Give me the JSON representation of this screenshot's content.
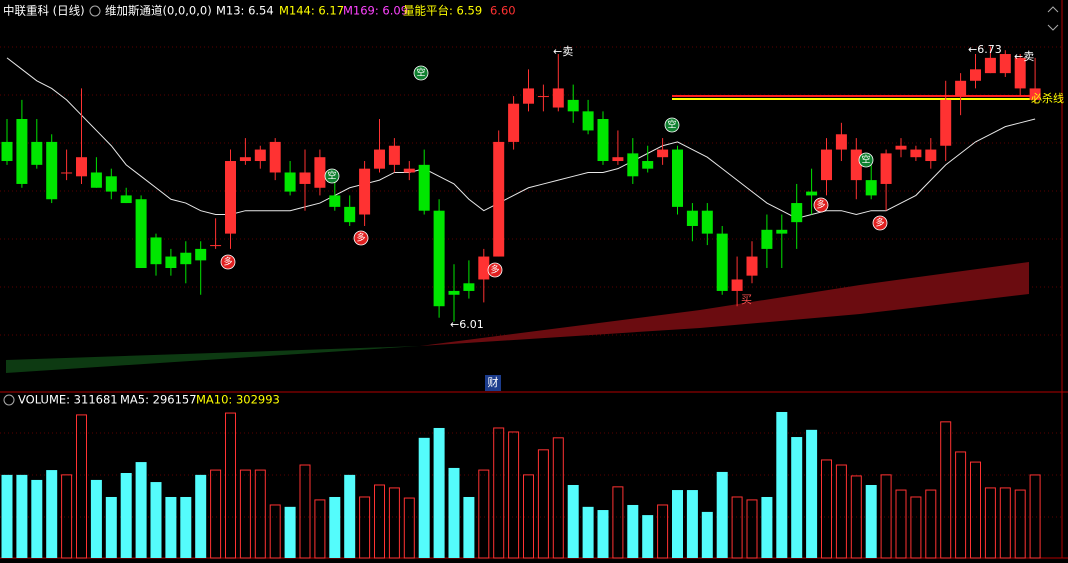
{
  "chart_data": [
    {
      "type": "candlestick",
      "title": "中联重科 (日线)",
      "indicators": [
        "维加斯通道(0,0,0,0)",
        "M13: 6.54",
        "M144: 6.17",
        "M169: 6.09",
        "量能平台: 6.59",
        "6.60"
      ],
      "open": [
        6.48,
        6.54,
        6.48,
        6.48,
        6.4,
        6.39,
        6.4,
        6.39,
        6.34,
        6.33,
        6.23,
        6.18,
        6.19,
        6.2,
        6.21,
        6.24,
        6.43,
        6.43,
        6.4,
        6.4,
        6.37,
        6.36,
        6.34,
        6.31,
        6.29,
        6.41,
        6.42,
        6.4,
        6.42,
        6.3,
        6.09,
        6.11,
        6.12,
        6.18,
        6.48,
        6.58,
        6.6,
        6.57,
        6.59,
        6.56,
        6.54,
        6.43,
        6.45,
        6.43,
        6.44,
        6.46,
        6.3,
        6.3,
        6.24,
        6.09,
        6.13,
        6.25,
        6.25,
        6.32,
        6.35,
        6.38,
        6.46,
        6.38,
        6.38,
        6.37,
        6.46,
        6.44,
        6.43,
        6.47,
        6.6,
        6.64,
        6.66,
        6.66,
        6.62,
        6.59
      ],
      "close": [
        6.43,
        6.37,
        6.42,
        6.33,
        6.4,
        6.44,
        6.36,
        6.35,
        6.32,
        6.15,
        6.16,
        6.15,
        6.16,
        6.17,
        6.21,
        6.43,
        6.44,
        6.46,
        6.48,
        6.35,
        6.4,
        6.44,
        6.31,
        6.27,
        6.41,
        6.46,
        6.47,
        6.41,
        6.3,
        6.05,
        6.08,
        6.09,
        6.18,
        6.48,
        6.58,
        6.62,
        6.6,
        6.62,
        6.56,
        6.51,
        6.43,
        6.44,
        6.39,
        6.41,
        6.46,
        6.31,
        6.26,
        6.24,
        6.09,
        6.12,
        6.18,
        6.2,
        6.24,
        6.27,
        6.34,
        6.46,
        6.5,
        6.46,
        6.34,
        6.45,
        6.47,
        6.46,
        6.46,
        6.59,
        6.64,
        6.67,
        6.7,
        6.71,
        6.7,
        6.62
      ],
      "high": [
        6.54,
        6.59,
        6.54,
        6.5,
        6.46,
        6.62,
        6.44,
        6.41,
        6.36,
        6.34,
        6.24,
        6.2,
        6.22,
        6.22,
        6.28,
        6.46,
        6.49,
        6.47,
        6.49,
        6.43,
        6.46,
        6.46,
        6.4,
        6.34,
        6.43,
        6.54,
        6.49,
        6.43,
        6.46,
        6.33,
        6.16,
        6.17,
        6.2,
        6.51,
        6.6,
        6.67,
        6.63,
        6.71,
        6.63,
        6.59,
        6.56,
        6.51,
        6.49,
        6.47,
        6.49,
        6.47,
        6.32,
        6.32,
        6.26,
        6.18,
        6.22,
        6.29,
        6.29,
        6.37,
        6.41,
        6.49,
        6.53,
        6.49,
        6.42,
        6.46,
        6.49,
        6.47,
        6.49,
        6.64,
        6.66,
        6.71,
        6.73,
        6.72,
        6.71,
        6.7
      ],
      "low": [
        6.42,
        6.36,
        6.41,
        6.32,
        6.38,
        6.37,
        6.36,
        6.33,
        6.32,
        6.15,
        6.13,
        6.13,
        6.11,
        6.08,
        6.2,
        6.2,
        6.42,
        6.41,
        6.38,
        6.34,
        6.3,
        6.34,
        6.3,
        6.26,
        6.26,
        6.4,
        6.4,
        6.38,
        6.29,
        6.02,
        6.01,
        6.07,
        6.06,
        6.18,
        6.46,
        6.56,
        6.56,
        6.56,
        6.53,
        6.5,
        6.42,
        6.42,
        6.37,
        6.4,
        6.42,
        6.29,
        6.22,
        6.21,
        6.08,
        6.05,
        6.11,
        6.15,
        6.15,
        6.2,
        6.29,
        6.34,
        6.43,
        6.33,
        6.33,
        6.3,
        6.44,
        6.43,
        6.41,
        6.43,
        6.55,
        6.62,
        6.66,
        6.65,
        6.6,
        6.58
      ],
      "ma_values": [
        6.7,
        6.67,
        6.64,
        6.62,
        6.59,
        6.55,
        6.51,
        6.47,
        6.42,
        6.39,
        6.36,
        6.33,
        6.32,
        6.3,
        6.29,
        6.29,
        6.3,
        6.3,
        6.3,
        6.3,
        6.31,
        6.32,
        6.34,
        6.36,
        6.37,
        6.38,
        6.4,
        6.4,
        6.41,
        6.39,
        6.37,
        6.33,
        6.3,
        6.32,
        6.34,
        6.36,
        6.37,
        6.38,
        6.39,
        6.4,
        6.4,
        6.41,
        6.43,
        6.45,
        6.47,
        6.48,
        6.46,
        6.44,
        6.41,
        6.38,
        6.35,
        6.32,
        6.3,
        6.28,
        6.29,
        6.3,
        6.3,
        6.29,
        6.3,
        6.3,
        6.32,
        6.34,
        6.38,
        6.42,
        6.45,
        6.48,
        6.5,
        6.52,
        6.53,
        6.54
      ],
      "ma_color": "#e8e8e8",
      "colors": {
        "up": "#ff3232",
        "down": "#00e600"
      },
      "ylim": [
        5.87,
        6.82
      ],
      "annotations": [
        "←6.01",
        "←6.73",
        "←卖",
        "←卖",
        "买",
        "必杀线",
        "多",
        "多",
        "多",
        "多",
        "多",
        "空",
        "空",
        "空",
        "空",
        "财"
      ]
    },
    {
      "type": "bar",
      "indicators": [
        "VOLUME: 311681",
        "MA5: 296157",
        "MA10: 302993"
      ],
      "values": [
        312000,
        312000,
        293000,
        330000,
        312000,
        537000,
        293000,
        229000,
        319000,
        360000,
        285000,
        229000,
        229000,
        312000,
        330000,
        544000,
        330000,
        330000,
        199000,
        192000,
        349000,
        218000,
        229000,
        312000,
        229000,
        274000,
        263000,
        225000,
        451000,
        488000,
        338000,
        229000,
        330000,
        488000,
        473000,
        312000,
        406000,
        451000,
        274000,
        192000,
        180000,
        267000,
        199000,
        161000,
        199000,
        255000,
        255000,
        173000,
        323000,
        229000,
        218000,
        229000,
        548000,
        454000,
        481000,
        368000,
        349000,
        308000,
        274000,
        312000,
        255000,
        229000,
        255000,
        511000,
        398000,
        360000,
        263000,
        263000,
        255000,
        311681
      ],
      "colors": {
        "up": "#ff3232",
        "down": "#54fcfc"
      },
      "ylim": [
        0,
        623000
      ]
    }
  ]
}
